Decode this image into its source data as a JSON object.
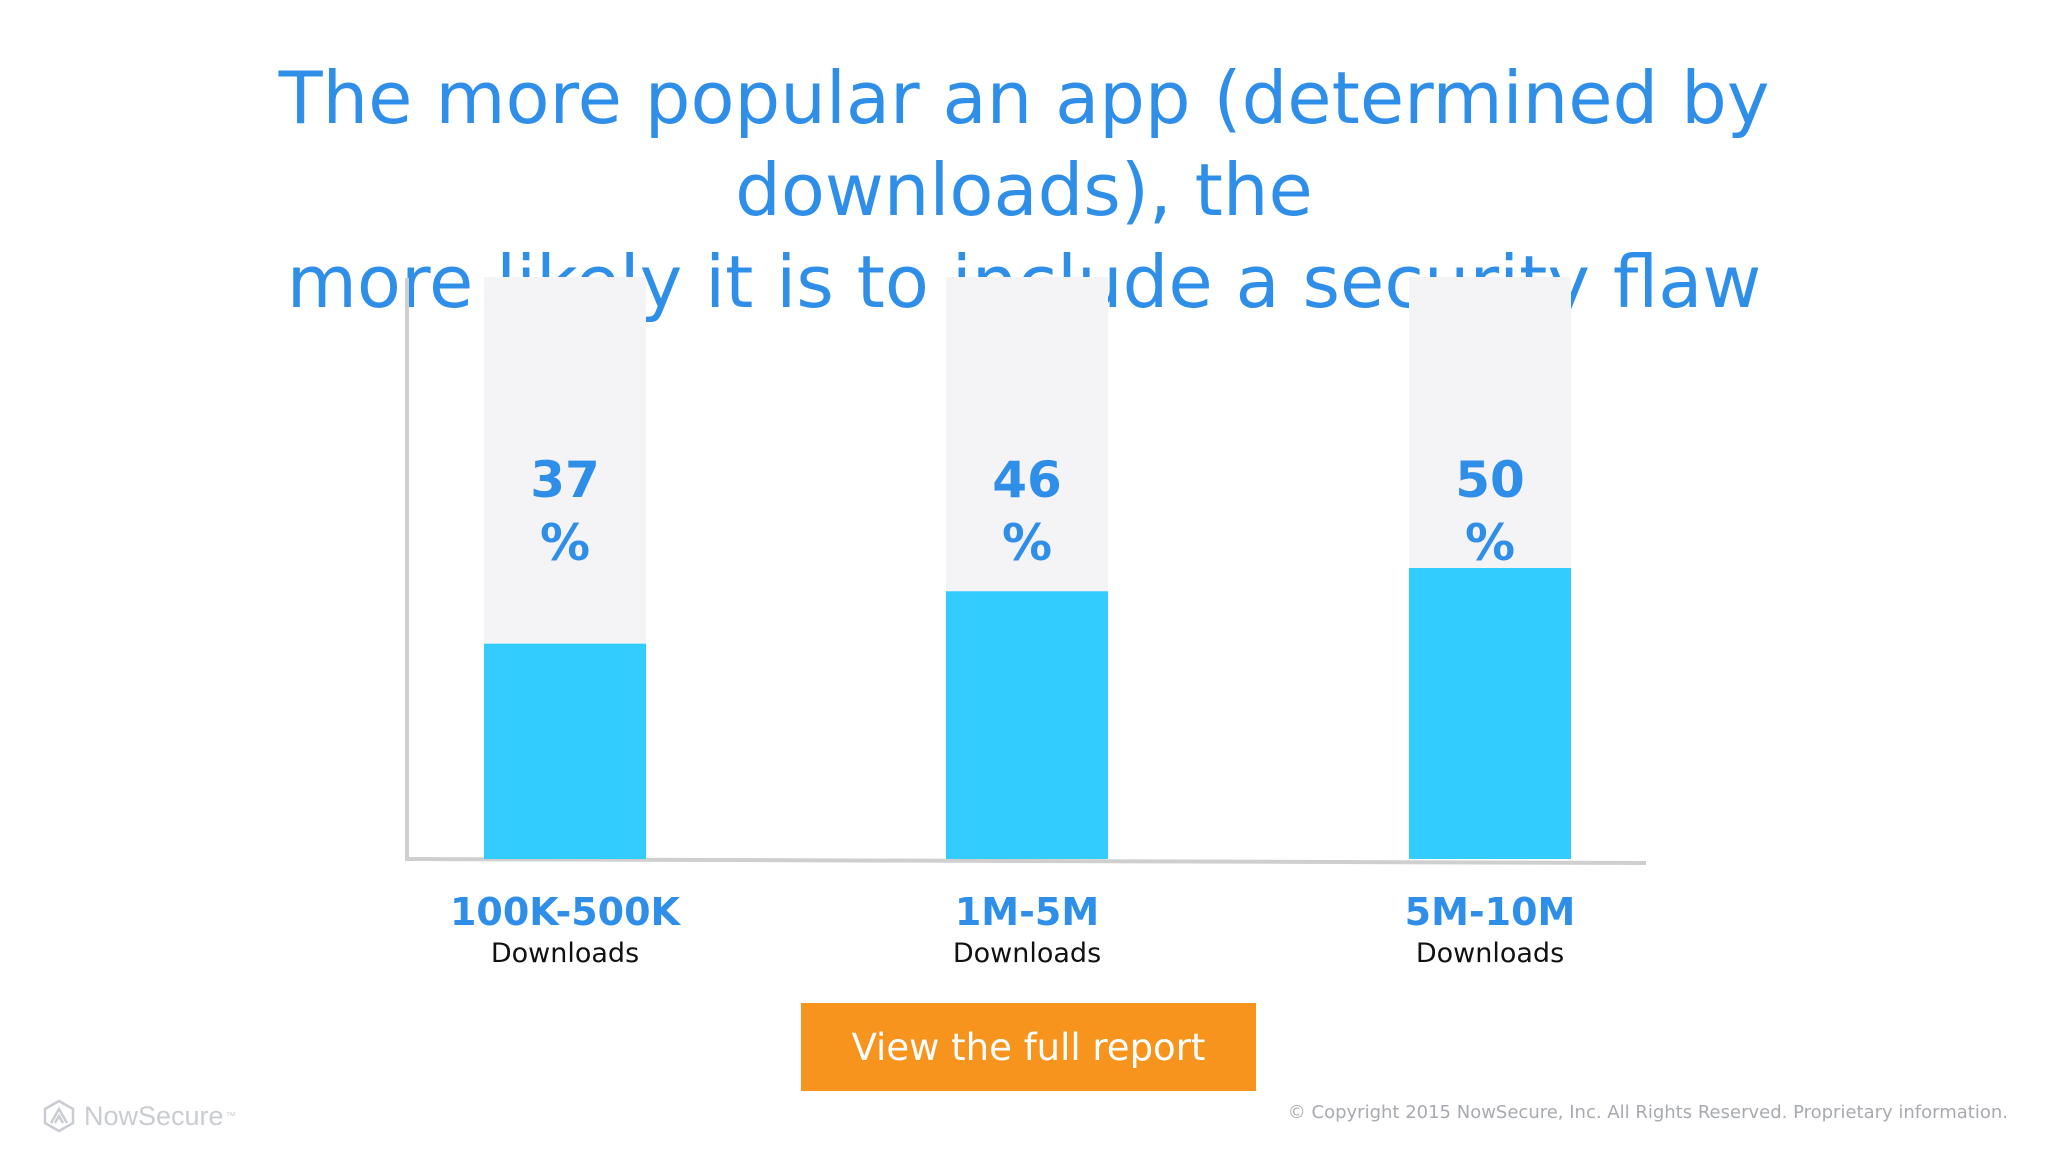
{
  "title_lines": [
    "The more popular an app (determined by downloads), the",
    "more likely it is to include a security flaw"
  ],
  "chart_data": {
    "type": "bar",
    "categories": [
      "100K-500K",
      "1M-5M",
      "5M-10M"
    ],
    "category_sublabel": "Downloads",
    "values": [
      37,
      46,
      50
    ],
    "value_suffix": "%",
    "ylim": [
      0,
      100
    ],
    "grid": false,
    "colors": {
      "bar": "#33ccff",
      "track": "#f4f3f6",
      "value_label": "#2f8fe8",
      "category_label": "#2f8fe8",
      "sublabel": "#111111",
      "axis": "#cfcfcf"
    }
  },
  "cta": {
    "label": "View the full report",
    "color": "#f7941d"
  },
  "footer": {
    "logo_text": "NowSecure",
    "logo_mark": "™",
    "copyright": "© Copyright 2015 NowSecure, Inc. All Rights Reserved. Proprietary information."
  }
}
